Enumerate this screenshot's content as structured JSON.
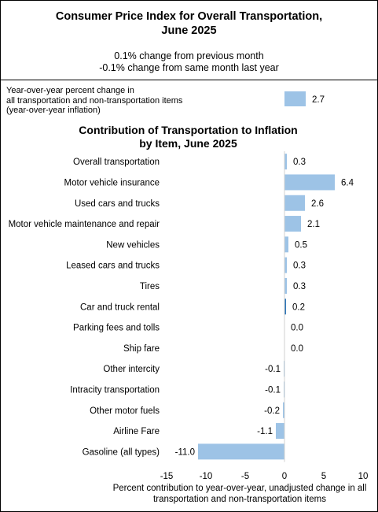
{
  "header": {
    "title_line1": "Consumer Price Index for Overall Transportation,",
    "title_line2": "June 2025",
    "monthly_change": "0.1% change from previous month",
    "yearly_change": "-0.1% change from same month last year"
  },
  "yoy": {
    "label_line1": "Year-over-year percent change in",
    "label_line2": "all transportation and non-transportation items",
    "label_line3": "(year-over-year inflation)",
    "value": 2.7,
    "value_label": "2.7"
  },
  "chart_data": {
    "type": "bar",
    "orientation": "horizontal",
    "title_line1": "Contribution of Transportation to Inflation",
    "title_line2": "by Item, June 2025",
    "categories": [
      "Overall transportation",
      "Motor vehicle insurance",
      "Used cars and trucks",
      "Motor vehicle maintenance and repair",
      "New vehicles",
      "Leased cars and trucks",
      "Tires",
      "Car and truck rental",
      "Parking fees and tolls",
      "Ship fare",
      "Other intercity",
      "Intracity transportation",
      "Other motor fuels",
      "Airline Fare",
      "Gasoline (all types)"
    ],
    "values": [
      0.3,
      6.4,
      2.6,
      2.1,
      0.5,
      0.3,
      0.3,
      0.2,
      0.0,
      0.0,
      -0.1,
      -0.1,
      -0.2,
      -1.1,
      -11.0
    ],
    "value_labels": [
      "0.3",
      "6.4",
      "2.6",
      "2.1",
      "0.5",
      "0.3",
      "0.3",
      "0.2",
      "0.0",
      "0.0",
      "-0.1",
      "-0.1",
      "-0.2",
      "-1.1",
      "-11.0"
    ],
    "highlight_index": 7,
    "xlim": [
      -15,
      10
    ],
    "xticks": [
      -15,
      -10,
      -5,
      0,
      5,
      10
    ],
    "xlabel_line1": "Percent contribution to year-over-year,  unadjusted change in all",
    "xlabel_line2": "transportation and non-transportation items",
    "bar_color": "#9dc3e6",
    "highlight_color": "#2e75b6"
  }
}
